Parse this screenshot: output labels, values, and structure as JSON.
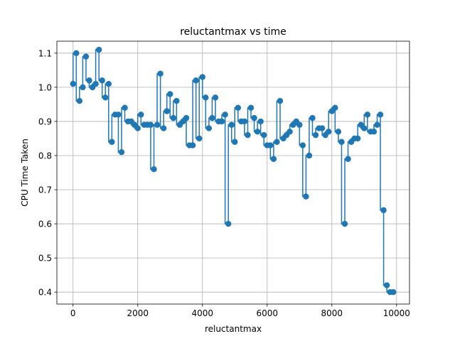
{
  "chart_data": {
    "type": "line",
    "title": "reluctantmax vs time",
    "xlabel": "reluctantmax",
    "ylabel": "CPU Time Taken",
    "xlim": [
      -500,
      10400
    ],
    "ylim": [
      0.365,
      1.135
    ],
    "x_ticks": [
      0,
      2000,
      4000,
      6000,
      8000,
      10000
    ],
    "x_tick_labels": [
      "0",
      "2000",
      "4000",
      "6000",
      "8000",
      "10000"
    ],
    "y_ticks": [
      0.4,
      0.5,
      0.6,
      0.7,
      0.8,
      0.9,
      1.0,
      1.1
    ],
    "y_tick_labels": [
      "0.4",
      "0.5",
      "0.6",
      "0.7",
      "0.8",
      "0.9",
      "1.0",
      "1.1"
    ],
    "grid": true,
    "drawstyle": "steps-pre",
    "marker": "circle",
    "color": "#1f77b4",
    "series": [
      {
        "x": [
          0,
          100,
          200,
          300,
          400,
          500,
          600,
          700,
          800,
          900,
          1000,
          1100,
          1200,
          1300,
          1400,
          1500,
          1600,
          1700,
          1800,
          1900,
          2000,
          2100,
          2200,
          2300,
          2400,
          2500,
          2600,
          2700,
          2800,
          2900,
          3000,
          3100,
          3200,
          3300,
          3400,
          3500,
          3600,
          3700,
          3800,
          3900,
          4000,
          4100,
          4200,
          4300,
          4400,
          4500,
          4600,
          4700,
          4800,
          4900,
          5000,
          5100,
          5200,
          5300,
          5400,
          5500,
          5600,
          5700,
          5800,
          5900,
          6000,
          6100,
          6200,
          6300,
          6400,
          6500,
          6600,
          6700,
          6800,
          6900,
          7000,
          7100,
          7200,
          7300,
          7400,
          7500,
          7600,
          7700,
          7800,
          7900,
          8000,
          8100,
          8200,
          8300,
          8400,
          8500,
          8600,
          8700,
          8800,
          8900,
          9000,
          9100,
          9200,
          9300,
          9400,
          9500,
          9600,
          9700,
          9800,
          9900
        ],
        "y": [
          1.01,
          1.1,
          0.96,
          1.0,
          1.09,
          1.02,
          1.0,
          1.01,
          1.11,
          1.02,
          0.97,
          1.01,
          0.84,
          0.92,
          0.92,
          0.81,
          0.94,
          0.9,
          0.9,
          0.89,
          0.88,
          0.92,
          0.89,
          0.89,
          0.89,
          0.76,
          0.89,
          1.04,
          0.88,
          0.93,
          0.98,
          0.91,
          0.96,
          0.89,
          0.9,
          0.91,
          0.83,
          0.83,
          1.02,
          0.85,
          1.03,
          0.97,
          0.88,
          0.91,
          0.97,
          0.9,
          0.9,
          0.92,
          0.6,
          0.89,
          0.84,
          0.94,
          0.9,
          0.9,
          0.86,
          0.94,
          0.91,
          0.87,
          0.9,
          0.86,
          0.83,
          0.83,
          0.79,
          0.84,
          0.96,
          0.85,
          0.86,
          0.87,
          0.89,
          0.9,
          0.89,
          0.83,
          0.68,
          0.8,
          0.91,
          0.86,
          0.88,
          0.88,
          0.86,
          0.87,
          0.93,
          0.94,
          0.87,
          0.84,
          0.6,
          0.79,
          0.84,
          0.85,
          0.85,
          0.89,
          0.88,
          0.92,
          0.87,
          0.87,
          0.89,
          0.92,
          0.64,
          0.42,
          0.4,
          0.4
        ]
      }
    ]
  }
}
